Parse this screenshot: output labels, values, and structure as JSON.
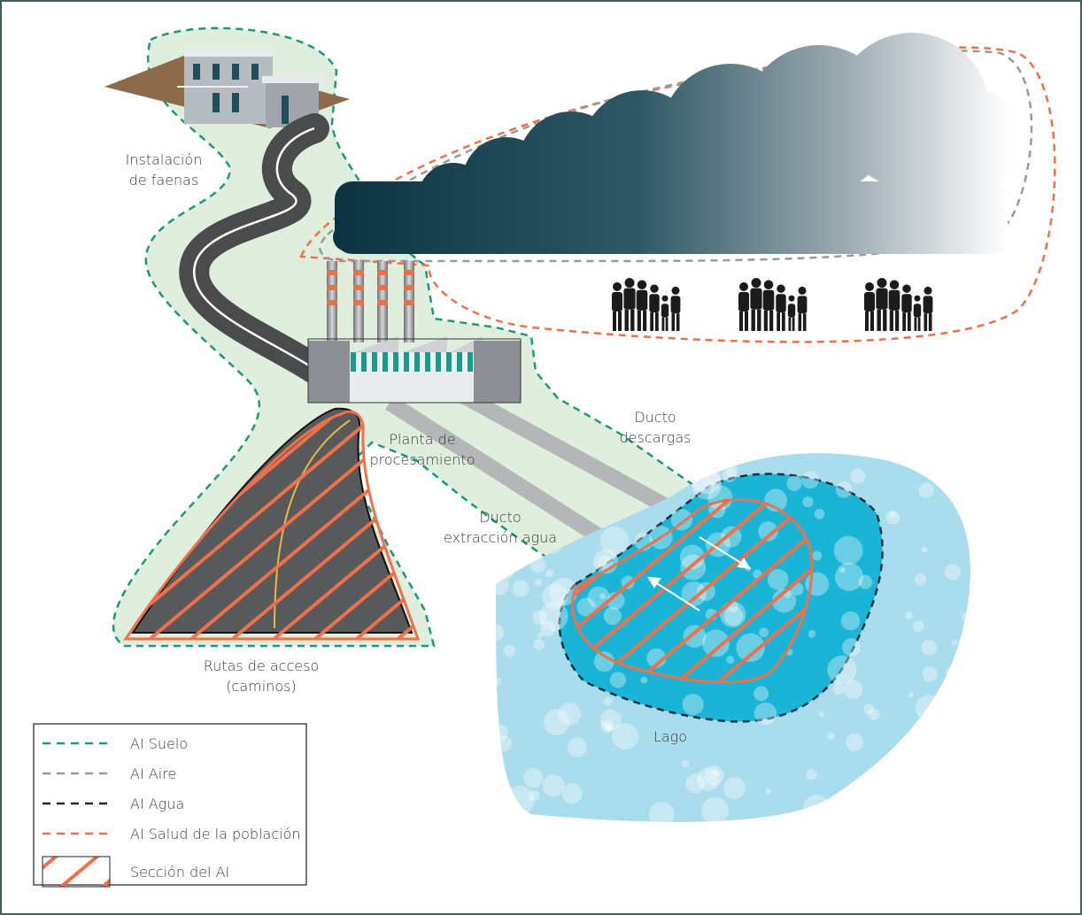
{
  "labels": [
    {
      "lines": [
        "Instalación",
        "de faenas"
      ]
    },
    {
      "lines": [
        "Planta de",
        "procesamiento"
      ]
    },
    {
      "lines": [
        "Ducto",
        "descargas"
      ]
    },
    {
      "lines": [
        "Ducto",
        "extracción agua"
      ]
    },
    {
      "lines": [
        "Rutas de acceso",
        "(caminos)"
      ]
    },
    {
      "lines": [
        "Lago"
      ]
    }
  ],
  "legend": [
    {
      "label": "AI Suelo"
    },
    {
      "label": "AI Aire"
    },
    {
      "label": "AI Agua"
    },
    {
      "label": "AI Salud de la población"
    },
    {
      "label": "Sección del AI"
    }
  ]
}
